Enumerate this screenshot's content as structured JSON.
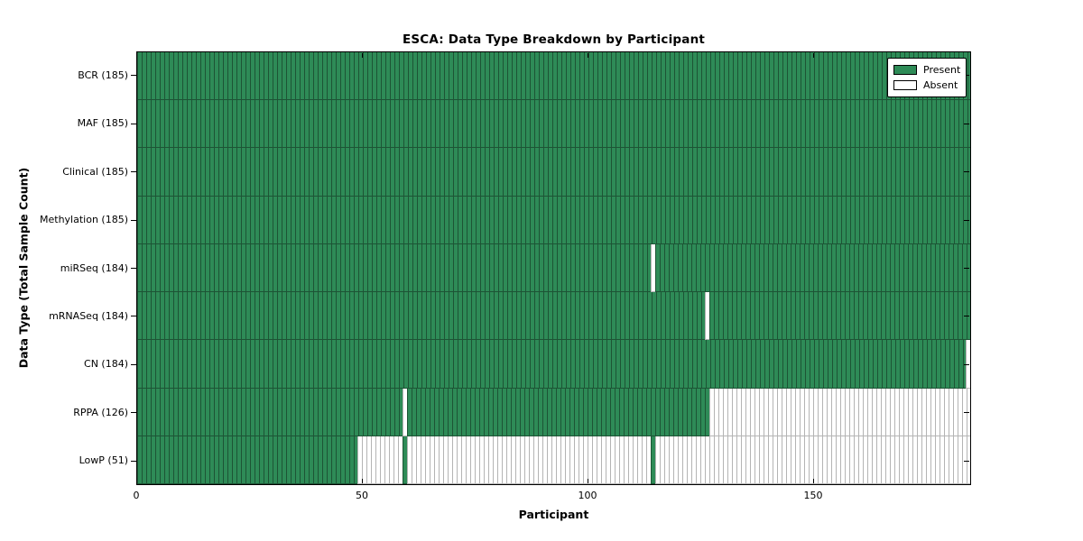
{
  "title": "ESCA: Data Type Breakdown by Participant",
  "axes": {
    "x_label": "Participant",
    "y_label": "Data Type (Total Sample Count)",
    "x_ticks": [
      0,
      50,
      100,
      150
    ],
    "x_max": 185
  },
  "colors": {
    "present_fill": "#2e8b57",
    "present_edge": "#1d5435",
    "absent_fill": "#ffffff",
    "absent_edge": "#b4b4b4",
    "frame": "#000000"
  },
  "chart_data": {
    "type": "heatmap",
    "title": "ESCA: Data Type Breakdown by Participant",
    "xlabel": "Participant",
    "ylabel": "Data Type (Total Sample Count)",
    "x_range": [
      0,
      185
    ],
    "n_participants": 185,
    "grid": false,
    "legend_position": "upper right",
    "legend_entries": [
      {
        "label": "Present",
        "color": "#2e8b57"
      },
      {
        "label": "Absent",
        "color": "#ffffff"
      }
    ],
    "rows": [
      {
        "name": "BCR",
        "label": "BCR (185)",
        "total": 185,
        "absent_ranges": []
      },
      {
        "name": "MAF",
        "label": "MAF (185)",
        "total": 185,
        "absent_ranges": []
      },
      {
        "name": "Clinical",
        "label": "Clinical (185)",
        "total": 185,
        "absent_ranges": []
      },
      {
        "name": "Methylation",
        "label": "Methylation (185)",
        "total": 185,
        "absent_ranges": []
      },
      {
        "name": "miRSeq",
        "label": "miRSeq (184)",
        "total": 184,
        "absent_ranges": [
          [
            114,
            115
          ]
        ]
      },
      {
        "name": "mRNASeq",
        "label": "mRNASeq (184)",
        "total": 184,
        "absent_ranges": [
          [
            126,
            127
          ]
        ]
      },
      {
        "name": "CN",
        "label": "CN (184)",
        "total": 184,
        "absent_ranges": [
          [
            184,
            185
          ]
        ]
      },
      {
        "name": "RPPA",
        "label": "RPPA (126)",
        "total": 126,
        "absent_ranges": [
          [
            59,
            60
          ],
          [
            127,
            185
          ]
        ]
      },
      {
        "name": "LowP",
        "label": "LowP (51)",
        "total": 51,
        "absent_ranges": [
          [
            49,
            59
          ],
          [
            60,
            114
          ],
          [
            115,
            185
          ]
        ]
      }
    ]
  }
}
